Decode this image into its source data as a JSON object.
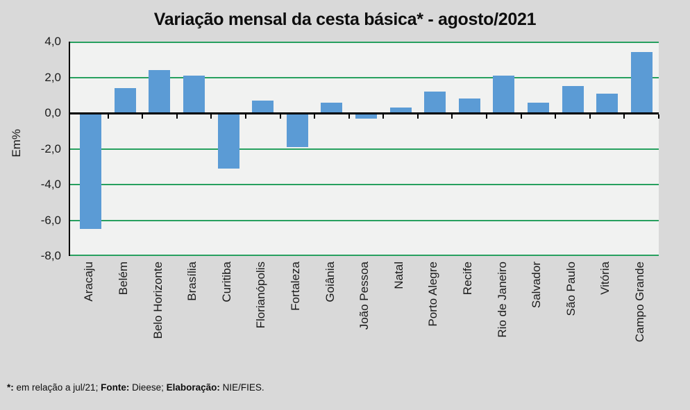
{
  "title": "Variação mensal da cesta básica* - agosto/2021",
  "footnote": {
    "star_bold": "*:",
    "star_text": " em relação a jul/21; ",
    "fonte_bold": "Fonte:",
    "fonte_text": " Dieese; ",
    "elab_bold": "Elaboração:",
    "elab_text": " NIE/FIES."
  },
  "chart_data": {
    "type": "bar",
    "title": "Variação mensal da cesta básica* - agosto/2021",
    "ylabel": "Em%",
    "xlabel": "",
    "unit": "%",
    "ylim": [
      -8.0,
      4.0
    ],
    "ytick_values": [
      4,
      2,
      0,
      -2,
      -4,
      -6,
      -8
    ],
    "ytick_labels": [
      "4,0",
      "2,0",
      "0,0",
      "-2,0",
      "-4,0",
      "-6,0",
      "-8,0"
    ],
    "grid": "horizontal green gridlines, black zero axis with category ticks",
    "legend": "none",
    "bar_color": "#5b9bd5",
    "gridline_color": "#27a05f",
    "axis_color": "#000000",
    "plot_background": "#f1f2f1",
    "page_background": "#d9d9d9",
    "categories": [
      "Aracaju",
      "Belém",
      "Belo Horizonte",
      "Brasília",
      "Curitiba",
      "Florianópolis",
      "Fortaleza",
      "Goiânia",
      "João Pessoa",
      "Natal",
      "Porto Alegre",
      "Recife",
      "Rio de Janeiro",
      "Salvador",
      "São Paulo",
      "Vitória",
      "Campo Grande"
    ],
    "values": [
      -6.5,
      1.4,
      2.4,
      2.1,
      -3.1,
      0.7,
      -1.9,
      0.6,
      -0.3,
      0.3,
      1.2,
      0.8,
      2.1,
      0.6,
      1.5,
      1.1,
      3.4
    ]
  }
}
